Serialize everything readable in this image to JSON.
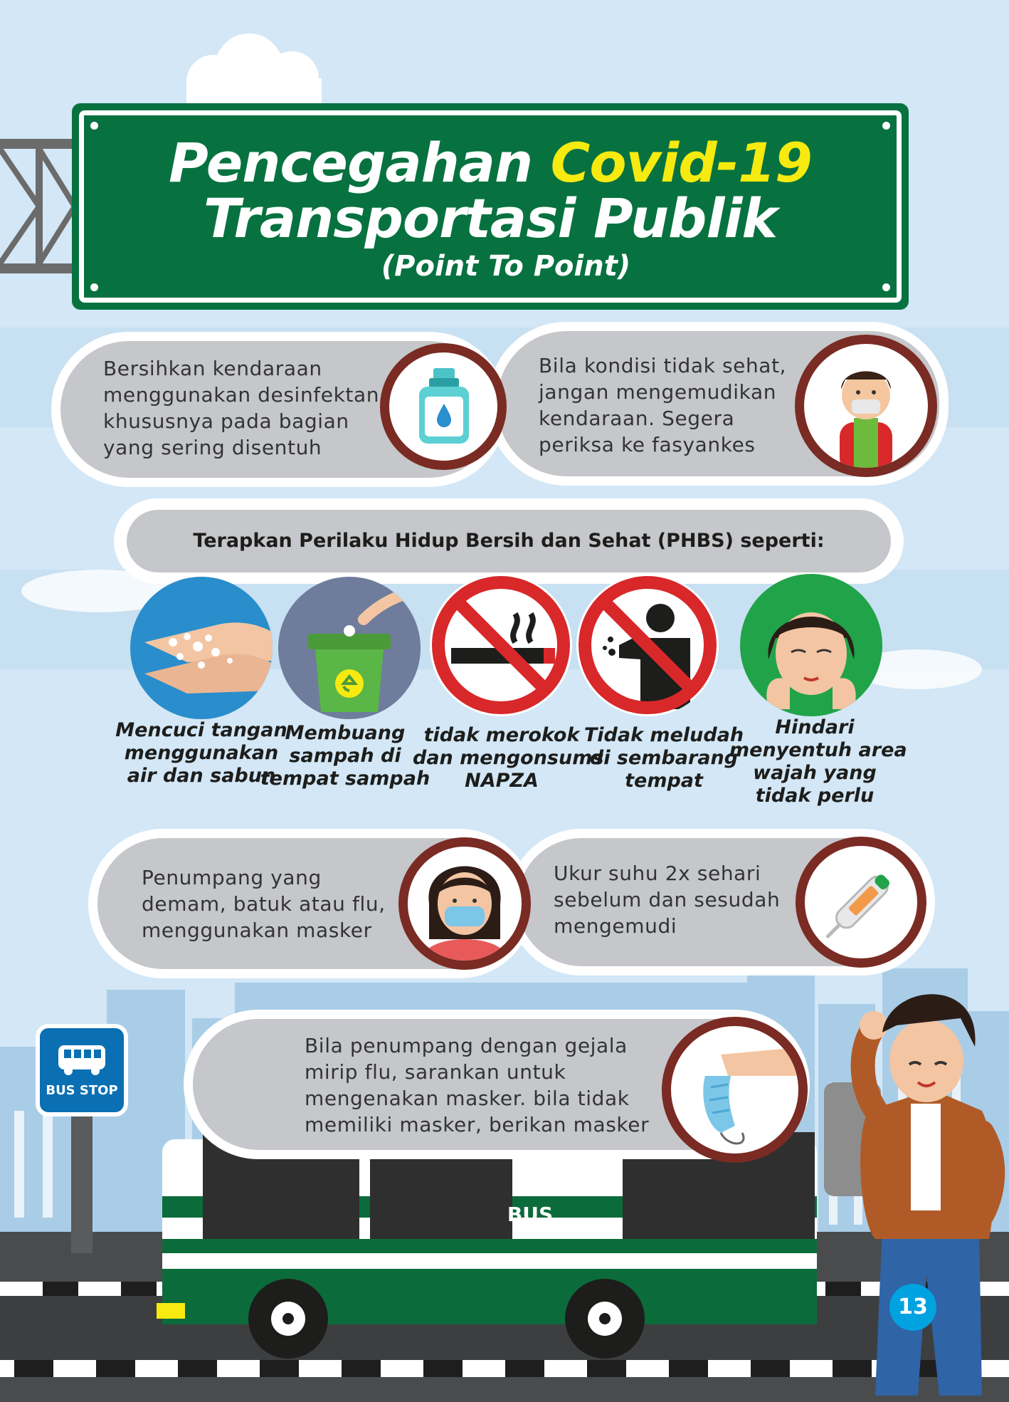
{
  "title": {
    "line1_a": "Pencegahan ",
    "line1_b": "Covid-19",
    "line2": "Transportasi Publik",
    "line3": "(Point To Point)"
  },
  "tips": {
    "disinfect": "Bersihkan kendaraan\nmenggunakan desinfektan\nkhususnya pada bagian\nyang sering disentuh",
    "unwell": "Bila kondisi tidak sehat,\njangan mengemudikan\nkendaraan. Segera\nperiksa ke fasyankes",
    "mask_passenger": "Penumpang yang\ndemam, batuk atau flu,\nmenggunakan masker",
    "temperature": "Ukur suhu 2x sehari\nsebelum dan sesudah\nmengemudi",
    "give_mask": "Bila penumpang dengan gejala\nmirip flu, sarankan untuk\nmengenakan masker. bila tidak\nmemiliki masker, berikan masker"
  },
  "phbs": {
    "heading": "Terapkan Perilaku Hidup Bersih dan Sehat (PHBS) seperti:",
    "items": [
      {
        "label": "Mencuci tangan\nmenggunakan\nair dan sabun"
      },
      {
        "label": "Membuang\nsampah di\ntempat sampah"
      },
      {
        "label": "tidak merokok\ndan mengonsumsi\nNAPZA"
      },
      {
        "label": "Tidak meludah\ndi sembarang\ntempat"
      },
      {
        "label": "Hindari\nmenyentuh area\nwajah yang\ntidak perlu"
      }
    ]
  },
  "bus_stop_label": "BUS STOP",
  "bus_label": "BUS",
  "page_number": "13",
  "colors": {
    "sign_green": "#077240",
    "title_yellow": "#f6ea10",
    "ring_brown": "#7a2b23",
    "pill_gray": "#c5c7ca",
    "sky": "#d3e7f6",
    "page_badge": "#00a2e0"
  }
}
